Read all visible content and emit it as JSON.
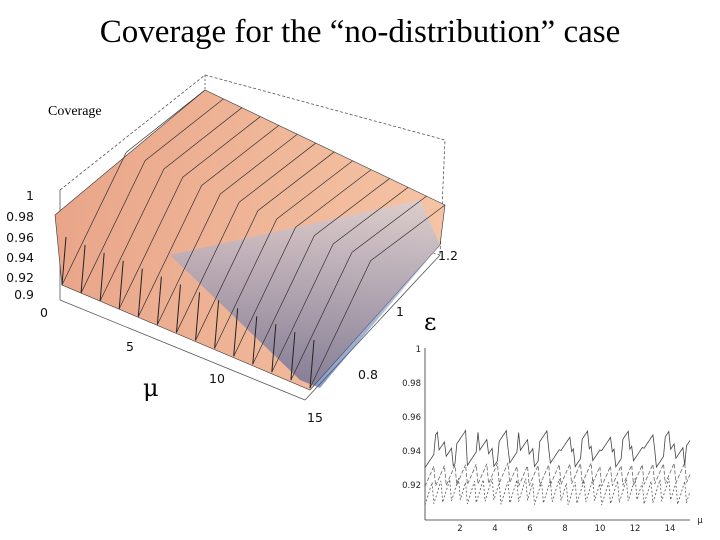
{
  "title": "Coverage for the “no-distribution” case",
  "chart_data": [
    {
      "type": "surface3d",
      "zlabel": "Coverage",
      "xlabel": "μ",
      "ylabel": "ε",
      "x_ticks": [
        "0",
        "5",
        "10",
        "15"
      ],
      "y_ticks": [
        "0.8",
        "1",
        "1.2"
      ],
      "z_ticks": [
        "1",
        "0.98",
        "0.96",
        "0.94",
        "0.92",
        "0.9",
        "0"
      ],
      "xlim": [
        0,
        15
      ],
      "ylim": [
        0.7,
        1.3
      ],
      "zlim": [
        0.9,
        1.0
      ],
      "colors": {
        "upper_face": "#f3b08c",
        "under_face": "#3a5aa0",
        "edge": "#222222"
      }
    },
    {
      "type": "line",
      "xlabel": "μ",
      "x_ticks": [
        "2",
        "4",
        "6",
        "8",
        "10",
        "12",
        "14"
      ],
      "y_ticks": [
        "1",
        "0.98",
        "0.96",
        "0.94",
        "0.92"
      ],
      "xlim": [
        0,
        15
      ],
      "ylim": [
        0.9,
        1.0
      ]
    }
  ]
}
